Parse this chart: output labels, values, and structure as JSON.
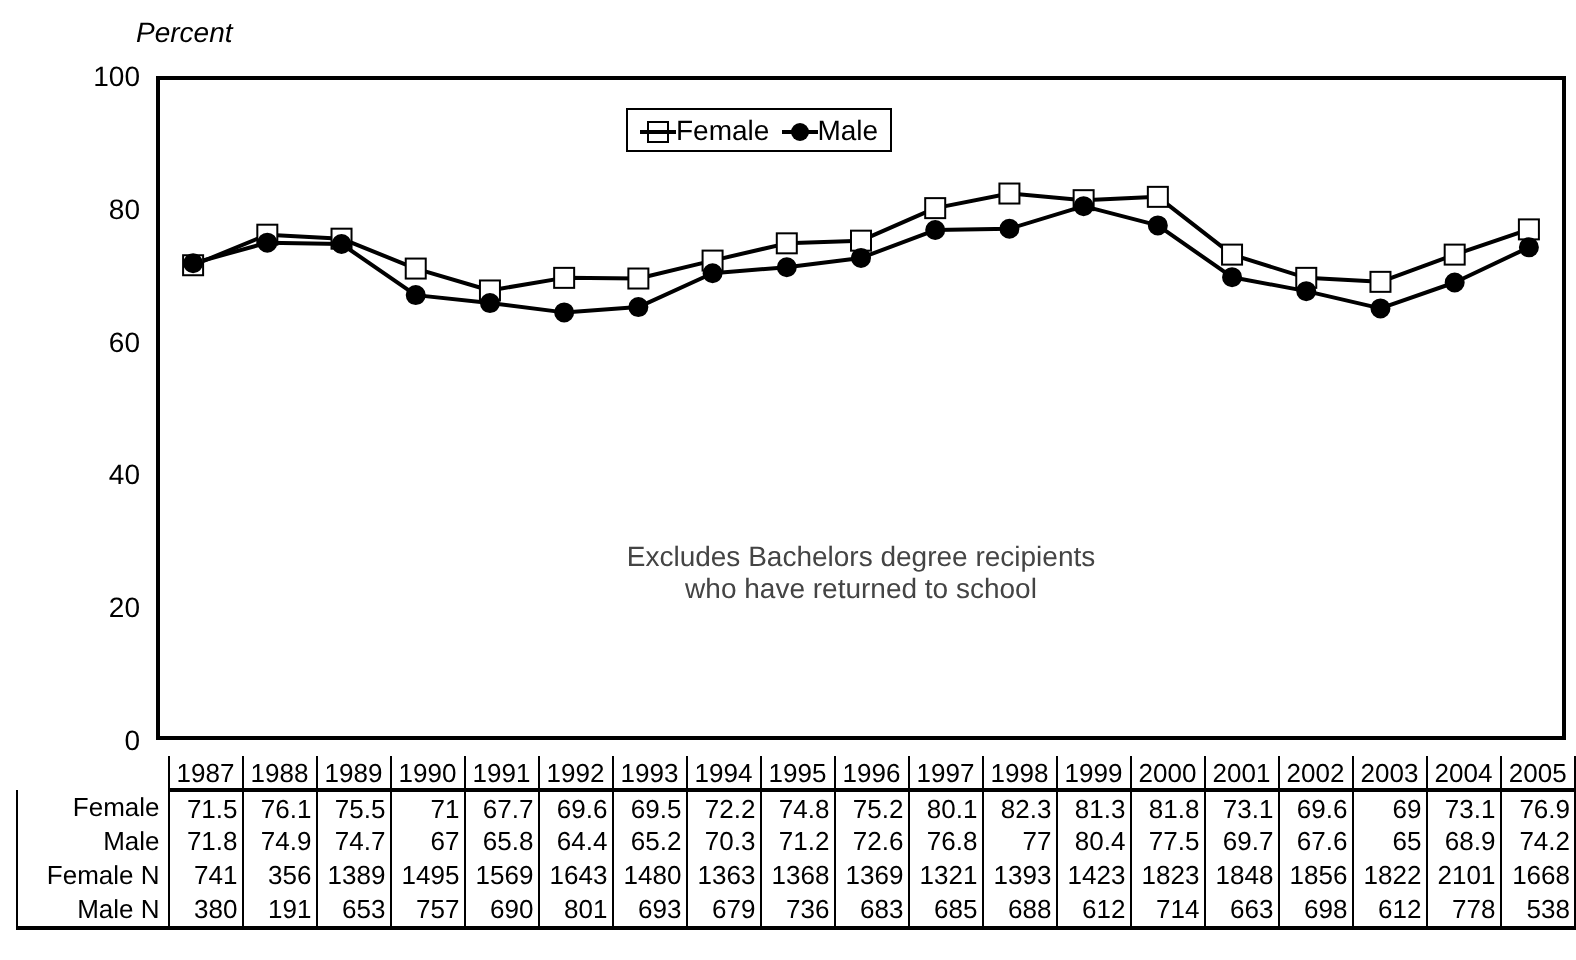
{
  "chart_data": {
    "type": "line",
    "ylabel": "Percent",
    "categories": [
      "1987",
      "1988",
      "1989",
      "1990",
      "1991",
      "1992",
      "1993",
      "1994",
      "1995",
      "1996",
      "1997",
      "1998",
      "1999",
      "2000",
      "2001",
      "2002",
      "2003",
      "2004",
      "2005"
    ],
    "series": [
      {
        "name": "Female",
        "color": "#000000",
        "marker": "square",
        "values": [
          71.5,
          76.1,
          75.5,
          71,
          67.7,
          69.6,
          69.5,
          72.2,
          74.8,
          75.2,
          80.1,
          82.3,
          81.3,
          81.8,
          73.1,
          69.6,
          69,
          73.1,
          76.9
        ]
      },
      {
        "name": "Male",
        "color": "#000000",
        "marker": "circle",
        "values": [
          71.8,
          74.9,
          74.7,
          67,
          65.8,
          64.4,
          65.2,
          70.3,
          71.2,
          72.6,
          76.8,
          77,
          80.4,
          77.5,
          69.7,
          67.6,
          65,
          68.9,
          74.2
        ]
      }
    ],
    "ylim": [
      0,
      100
    ],
    "yticks": [
      0,
      20,
      40,
      60,
      80,
      100
    ],
    "grid": false,
    "legend": "top",
    "data_labels": true,
    "annotations": [
      "Excludes Bachelors degree recipients who have returned to school",
      "Female N",
      "741",
      "356",
      "1389",
      "1495",
      "1569",
      "1643",
      "1480",
      "1363",
      "1368",
      "1369",
      "1321",
      "1393",
      "1423",
      "1823",
      "1848",
      "1856",
      "1822",
      "2101",
      "1668",
      "Male N",
      "380",
      "191",
      "653",
      "757",
      "690",
      "801",
      "693",
      "679",
      "736",
      "683",
      "685",
      "688",
      "612",
      "714",
      "663",
      "698",
      "612",
      "778",
      "538"
    ]
  }
}
